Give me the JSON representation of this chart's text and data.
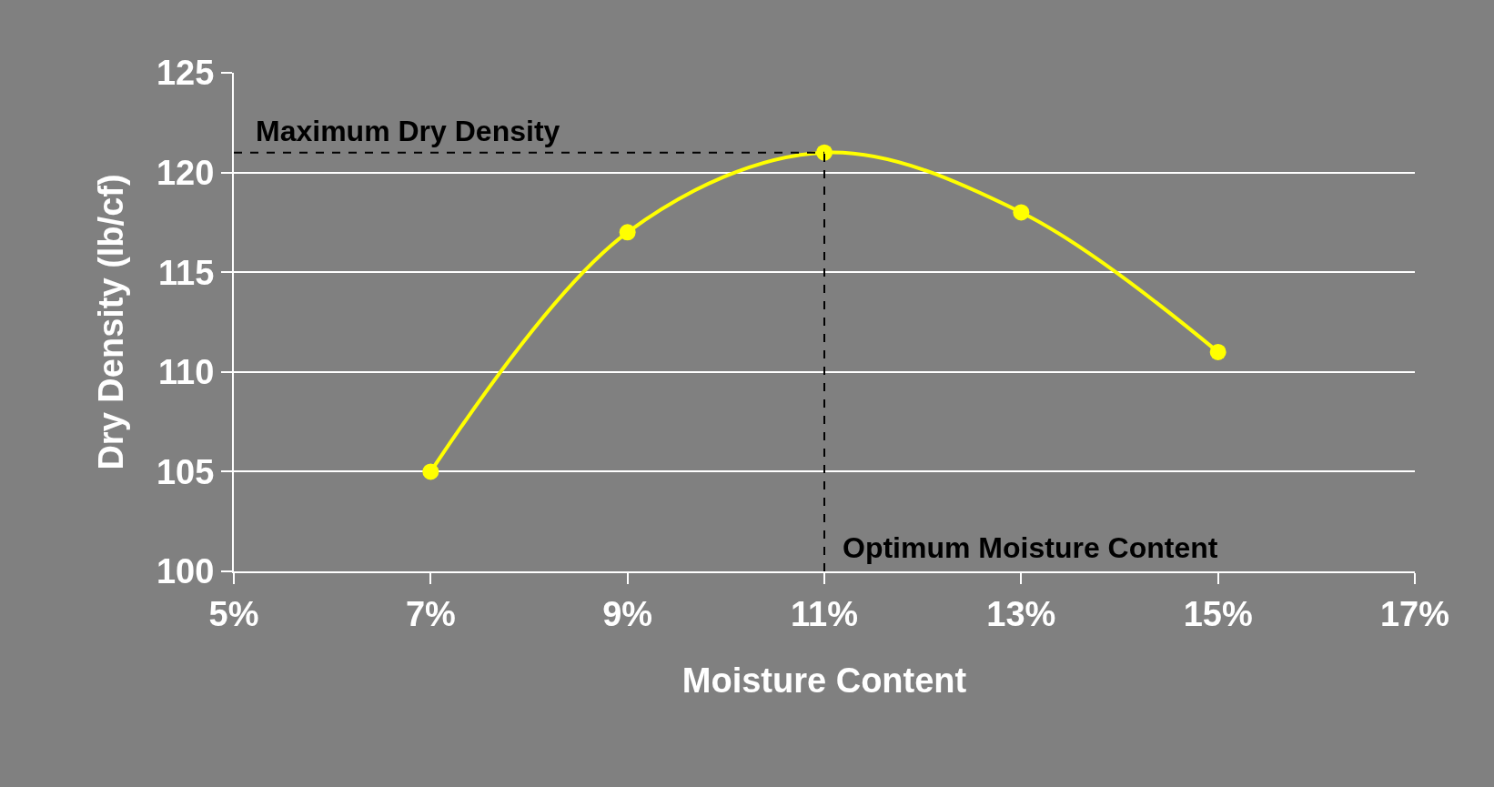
{
  "chart_data": {
    "type": "line",
    "xlabel": "Moisture Content",
    "ylabel": "Dry Density (lb/cf)",
    "x": [
      7,
      9,
      11,
      13,
      15
    ],
    "series": [
      {
        "color": "#ffff00",
        "values": [
          105,
          117,
          121,
          118,
          111
        ]
      }
    ],
    "xlim": [
      5,
      17
    ],
    "xticks": [
      {
        "value": 5,
        "label": "5%"
      },
      {
        "value": 7,
        "label": "7%"
      },
      {
        "value": 9,
        "label": "9%"
      },
      {
        "value": 11,
        "label": "11%"
      },
      {
        "value": 13,
        "label": "13%"
      },
      {
        "value": 15,
        "label": "15%"
      },
      {
        "value": 17,
        "label": "17%"
      }
    ],
    "ylim": [
      100,
      125
    ],
    "yticks": [
      100,
      105,
      110,
      115,
      120,
      125
    ],
    "grid": "y",
    "marker": "circle",
    "line_style": "solid",
    "ref_lines": [
      {
        "axis": "y",
        "value": 121,
        "label": "Maximum Dry Density",
        "color": "#000000",
        "line_style": "dashed"
      },
      {
        "axis": "x",
        "value": 11,
        "label": "Optimum Moisture Content",
        "color": "#000000",
        "line_style": "dashed"
      }
    ]
  }
}
